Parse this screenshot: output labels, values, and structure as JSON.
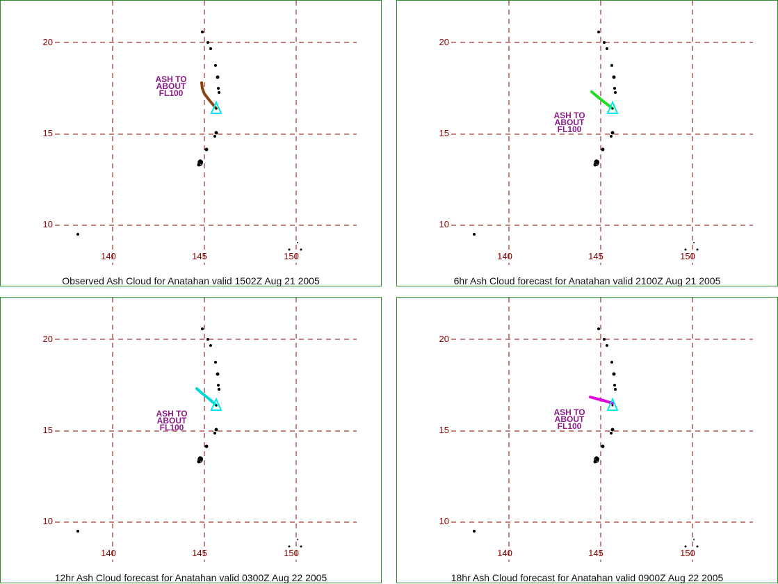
{
  "axes": {
    "x_ticks": [
      "140",
      "145",
      "150"
    ],
    "y_ticks": [
      "20",
      "15",
      "10"
    ],
    "grid_color": "#8b0000",
    "tick_color": "#8b0000"
  },
  "volcano_marker_color": "#00e5ee",
  "panels": [
    {
      "caption": "Observed Ash Cloud for Anatahan valid 1502Z Aug 21 2005",
      "ash_label": [
        "ASH TO",
        "ABOUT",
        "FL100"
      ],
      "plume_color": "#8b4513"
    },
    {
      "caption": "6hr Ash Cloud forecast for Anatahan valid 2100Z Aug 21 2005",
      "ash_label": [
        "ASH TO",
        "ABOUT",
        "FL100"
      ],
      "plume_color": "#22dd22"
    },
    {
      "caption": "12hr Ash Cloud forecast for Anatahan valid 0300Z Aug 22 2005",
      "ash_label": [
        "ASH TO",
        "ABOUT",
        "FL100"
      ],
      "plume_color": "#00d8d8"
    },
    {
      "caption": "18hr Ash Cloud forecast for Anatahan valid 0900Z Aug 22 2005",
      "ash_label": [
        "ASH TO",
        "ABOUT",
        "FL100"
      ],
      "plume_color": "#dd00dd"
    }
  ]
}
